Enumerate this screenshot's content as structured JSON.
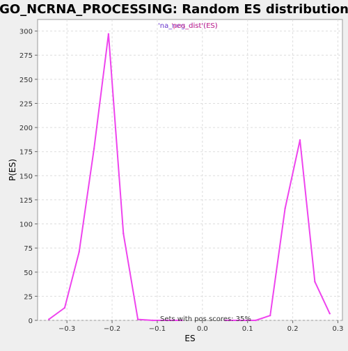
{
  "chart_data": {
    "type": "line",
    "title": "GO_NCRNA_PROCESSING: Random ES distribution",
    "xlabel": "ES",
    "ylabel": "P(ES)",
    "xlim": [
      -0.365,
      0.31
    ],
    "ylim": [
      0,
      312
    ],
    "xticks": [
      -0.3,
      -0.2,
      -0.1,
      0.0,
      0.1,
      0.2,
      0.3
    ],
    "xtick_labels": [
      "−0.3",
      "−0.2",
      "−0.1",
      "0.0",
      "0.1",
      "0.2",
      "0.3"
    ],
    "yticks": [
      0,
      25,
      50,
      75,
      100,
      125,
      150,
      175,
      200,
      225,
      250,
      275,
      300
    ],
    "grid": true,
    "legend_text": "'na_neg_dist'(ES)",
    "legend_overlap_text": "'pos_dist'(ES)",
    "annotation": "Sets with pos scores: 35%",
    "series": [
      {
        "name": "'na_neg_dist'(ES)",
        "color": "#ee44ee",
        "x": [
          -0.34,
          -0.305,
          -0.273,
          -0.24,
          -0.208,
          -0.175,
          -0.143,
          -0.11,
          -0.078,
          -0.045
        ],
        "y": [
          1,
          13,
          71,
          178,
          297,
          90,
          1,
          0,
          0,
          0
        ]
      },
      {
        "name": "'pos_dist'(ES)",
        "color": "#ee44ee",
        "x": [
          0.05,
          0.085,
          0.118,
          0.15,
          0.183,
          0.216,
          0.249,
          0.282
        ],
        "y": [
          0,
          0,
          0,
          5,
          116,
          187,
          40,
          7
        ]
      }
    ]
  }
}
